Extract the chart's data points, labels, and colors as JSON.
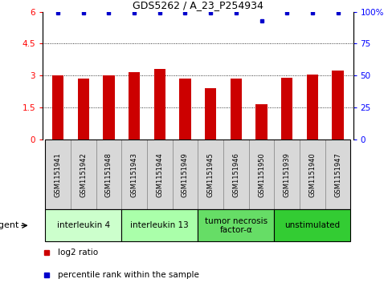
{
  "title": "GDS5262 / A_23_P254934",
  "samples": [
    "GSM1151941",
    "GSM1151942",
    "GSM1151948",
    "GSM1151943",
    "GSM1151944",
    "GSM1151949",
    "GSM1151945",
    "GSM1151946",
    "GSM1151950",
    "GSM1151939",
    "GSM1151940",
    "GSM1151947"
  ],
  "log2_ratio": [
    3.0,
    2.85,
    3.0,
    3.15,
    3.3,
    2.85,
    2.4,
    2.85,
    1.65,
    2.9,
    3.05,
    3.25
  ],
  "percentile": [
    99,
    99,
    99,
    99,
    99,
    99,
    99,
    99,
    93,
    99,
    99,
    99
  ],
  "bar_color": "#cc0000",
  "dot_color": "#0000cc",
  "ylim_left": [
    0,
    6
  ],
  "ylim_right": [
    0,
    100
  ],
  "yticks_left": [
    0,
    1.5,
    3.0,
    4.5,
    6
  ],
  "yticks_right": [
    0,
    25,
    50,
    75,
    100
  ],
  "ytick_labels_left": [
    "0",
    "1.5",
    "3",
    "4.5",
    "6"
  ],
  "ytick_labels_right": [
    "0",
    "25",
    "50",
    "75",
    "100%"
  ],
  "grid_values": [
    1.5,
    3.0,
    4.5
  ],
  "agents": [
    {
      "label": "interleukin 4",
      "indices": [
        0,
        1,
        2
      ],
      "color": "#ccffcc"
    },
    {
      "label": "interleukin 13",
      "indices": [
        3,
        4,
        5
      ],
      "color": "#aaffaa"
    },
    {
      "label": "tumor necrosis\nfactor-α",
      "indices": [
        6,
        7,
        8
      ],
      "color": "#66dd66"
    },
    {
      "label": "unstimulated",
      "indices": [
        9,
        10,
        11
      ],
      "color": "#33cc33"
    }
  ],
  "legend_entries": [
    {
      "label": "log2 ratio",
      "color": "#cc0000"
    },
    {
      "label": "percentile rank within the sample",
      "color": "#0000cc"
    }
  ],
  "agent_label": "agent",
  "bar_width": 0.45,
  "cell_bg": "#d8d8d8",
  "cell_border": "#888888"
}
